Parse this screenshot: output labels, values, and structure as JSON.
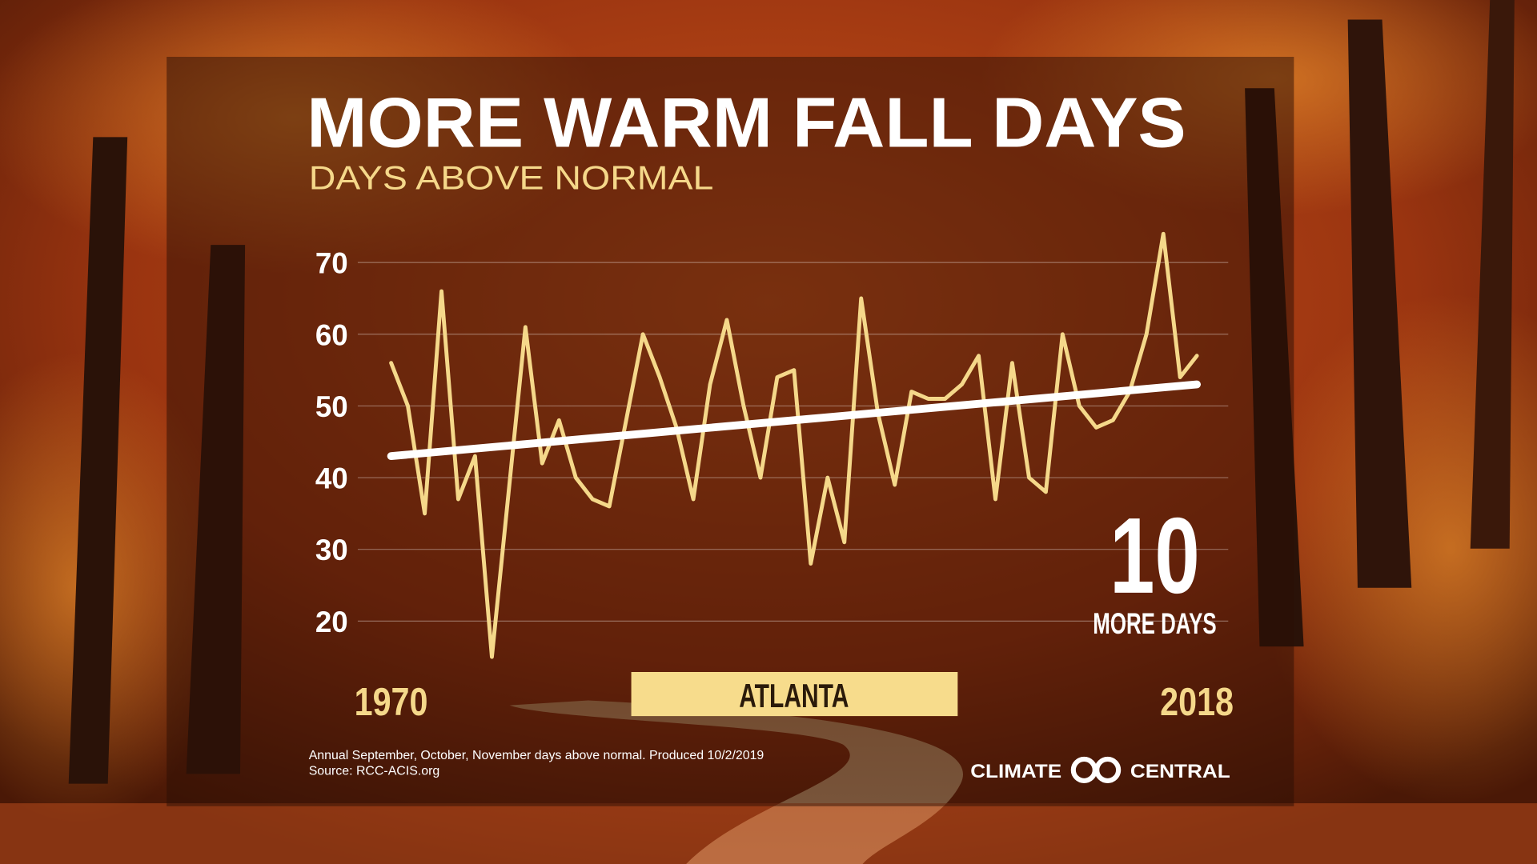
{
  "chart_data": {
    "type": "line",
    "title": "MORE WARM FALL DAYS",
    "subtitle": "DAYS ABOVE NORMAL",
    "x": [
      1970,
      1971,
      1972,
      1973,
      1974,
      1975,
      1976,
      1977,
      1978,
      1979,
      1980,
      1981,
      1982,
      1983,
      1984,
      1985,
      1986,
      1987,
      1988,
      1989,
      1990,
      1991,
      1992,
      1993,
      1994,
      1995,
      1996,
      1997,
      1998,
      1999,
      2000,
      2001,
      2002,
      2003,
      2004,
      2005,
      2006,
      2007,
      2008,
      2009,
      2010,
      2011,
      2012,
      2013,
      2014,
      2015,
      2016,
      2017,
      2018
    ],
    "values": [
      56,
      50,
      35,
      66,
      37,
      43,
      15,
      38,
      61,
      42,
      48,
      40,
      37,
      36,
      48,
      60,
      54,
      47,
      37,
      53,
      62,
      50,
      40,
      54,
      55,
      28,
      40,
      31,
      65,
      49,
      39,
      52,
      51,
      51,
      53,
      57,
      37,
      56,
      40,
      38,
      60,
      50,
      47,
      48,
      52,
      60,
      74,
      54,
      57
    ],
    "color": "#f5d88a",
    "trend": {
      "x": [
        1970,
        2018
      ],
      "values": [
        43,
        53
      ],
      "color": "#ffffff"
    },
    "xlim": [
      1970,
      2018
    ],
    "xticks": [
      1970,
      2018
    ],
    "ylim": [
      20,
      70
    ],
    "yticks": [
      20,
      30,
      40,
      50,
      60,
      70
    ],
    "grid": true,
    "location": "ATLANTA",
    "callout_value": 10,
    "callout_label": "MORE DAYS",
    "note": "Annual September, October, November days above normal. Produced 10/2/2019",
    "source": "Source: RCC-ACIS.org",
    "brand": [
      "CLIMATE",
      "CENTRAL"
    ]
  }
}
